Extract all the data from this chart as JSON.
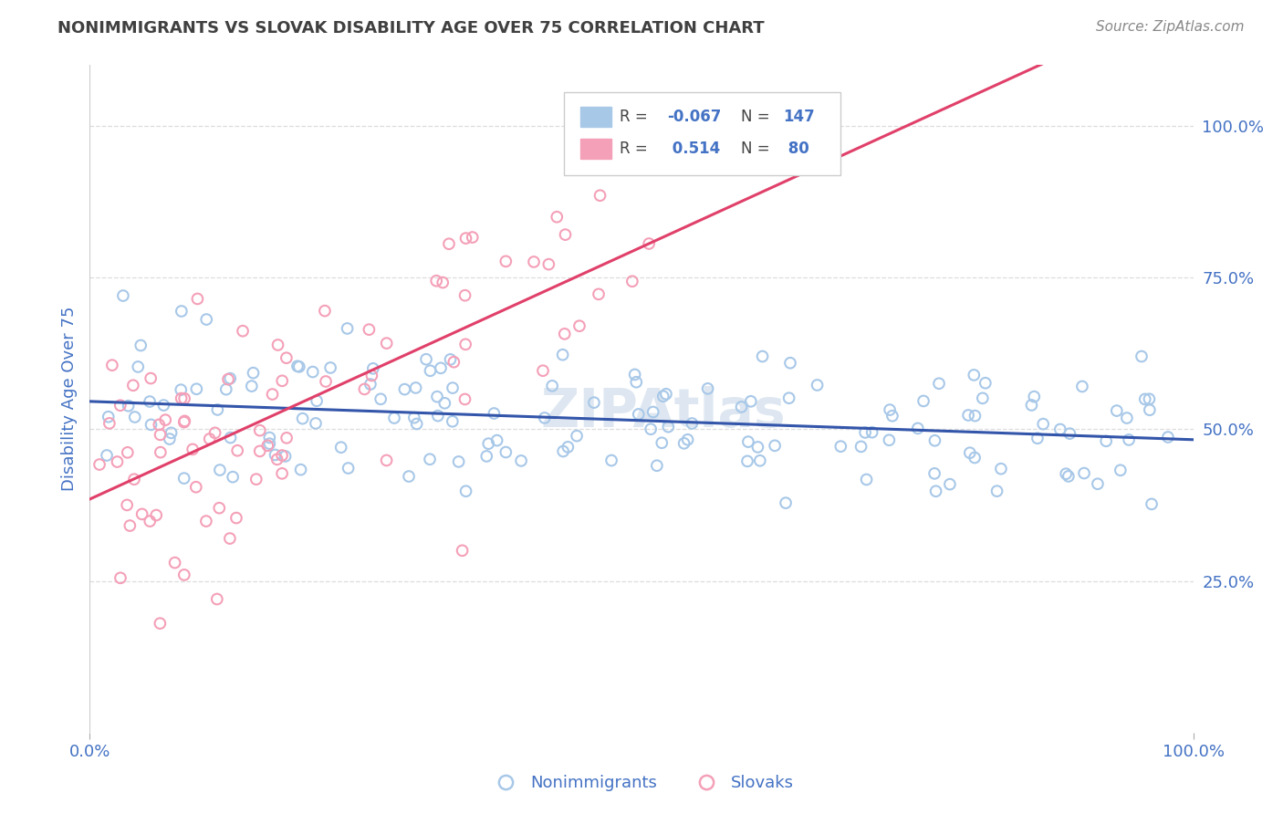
{
  "title": "NONIMMIGRANTS VS SLOVAK DISABILITY AGE OVER 75 CORRELATION CHART",
  "source": "Source: ZipAtlas.com",
  "ylabel": "Disability Age Over 75",
  "blue_R": -0.067,
  "blue_N": 147,
  "pink_R": 0.514,
  "pink_N": 80,
  "blue_color": "#a8c8e8",
  "pink_color": "#f4a0b8",
  "blue_line_color": "#3355aa",
  "pink_line_color": "#e0406a",
  "legend_R_color": "#4472c4",
  "legend_N_color": "#4472c4",
  "watermark_color": "#c8d8e8",
  "title_color": "#404040",
  "tick_label_color": "#4472c4",
  "grid_color": "#dddddd",
  "background_color": "#ffffff",
  "blue_seed": 42,
  "pink_seed": 99
}
